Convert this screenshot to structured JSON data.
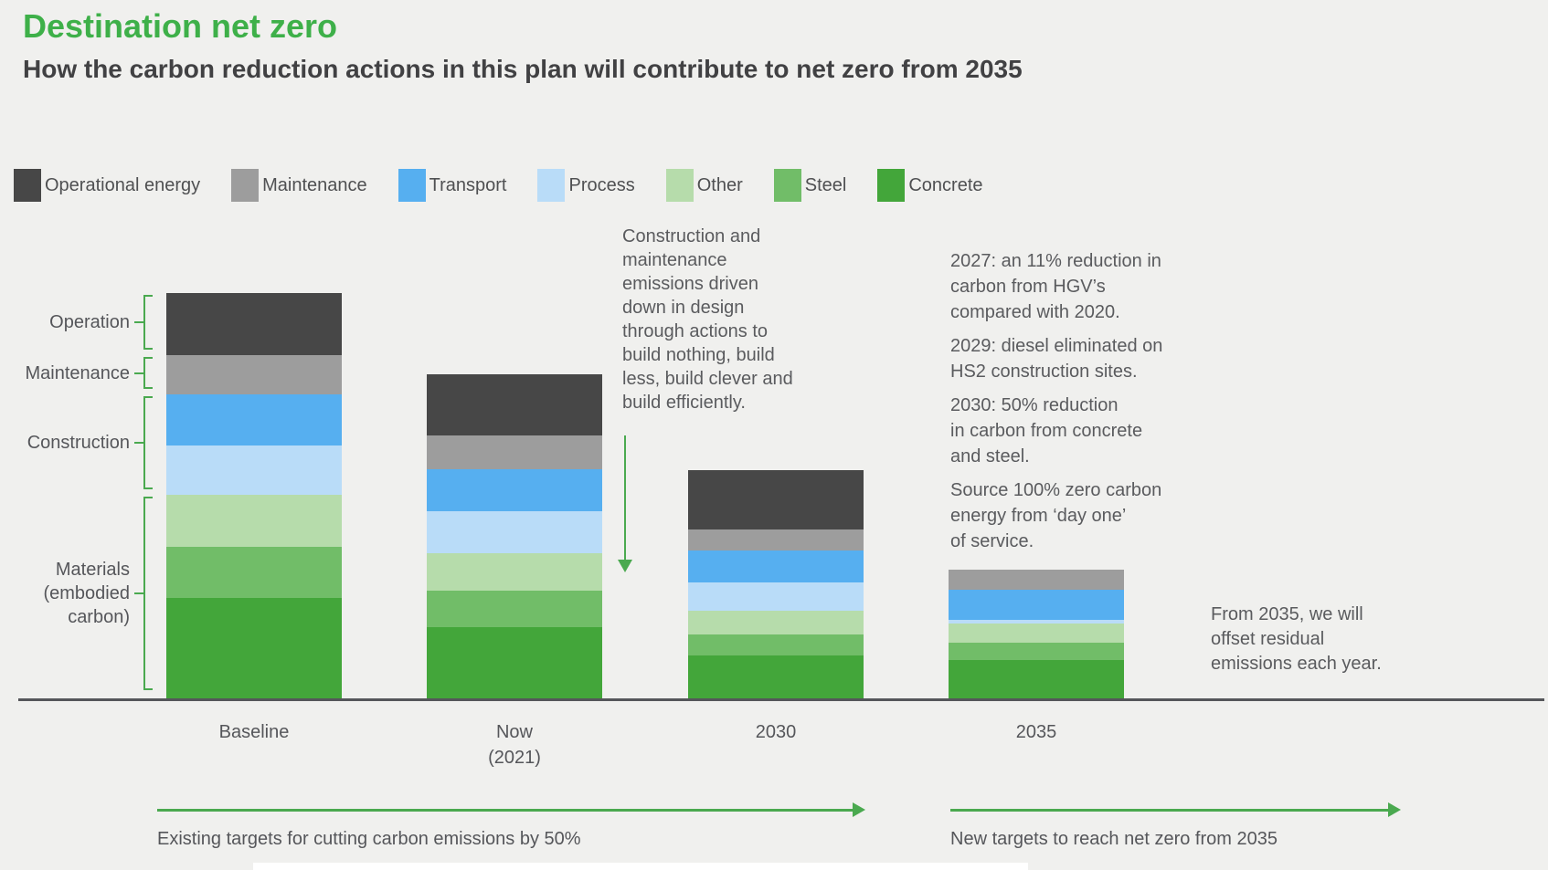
{
  "header": {
    "title": "Destination net zero",
    "subtitle": "How the carbon reduction actions in this plan will contribute to net zero from 2035"
  },
  "colors": {
    "background": "#f0f0ee",
    "title_green": "#3eb049",
    "accent_green": "#4aa94f",
    "axis": "#55565a",
    "text": "#5a5b5e"
  },
  "legend": {
    "items": [
      {
        "label": "Operational energy",
        "color": "#474747"
      },
      {
        "label": "Maintenance",
        "color": "#9d9d9d"
      },
      {
        "label": "Transport",
        "color": "#56aff0"
      },
      {
        "label": "Process",
        "color": "#b9dcf8"
      },
      {
        "label": "Other",
        "color": "#b6dcab"
      },
      {
        "label": "Steel",
        "color": "#71bd68"
      },
      {
        "label": "Concrete",
        "color": "#43a63a"
      }
    ]
  },
  "chart_data": {
    "type": "bar",
    "stacked": true,
    "title": "Destination net zero",
    "subtitle": "How the carbon reduction actions in this plan will contribute to net zero from 2035",
    "categories": [
      "Baseline",
      "Now\n(2021)",
      "2030",
      "2035"
    ],
    "series_note": "series listed top-to-bottom of stack; values are relative emission amounts (pixel-measured, Baseline total = 444, no numeric axis shown)",
    "series": [
      {
        "name": "Operational energy",
        "color": "#474747",
        "values": [
          68,
          67,
          65,
          0
        ]
      },
      {
        "name": "Maintenance",
        "color": "#9d9d9d",
        "values": [
          43,
          37,
          23,
          22
        ]
      },
      {
        "name": "Transport",
        "color": "#56aff0",
        "values": [
          56,
          46,
          35,
          33
        ]
      },
      {
        "name": "Process",
        "color": "#b9dcf8",
        "values": [
          54,
          46,
          31,
          4
        ]
      },
      {
        "name": "Other",
        "color": "#b6dcab",
        "values": [
          57,
          41,
          26,
          21
        ]
      },
      {
        "name": "Steel",
        "color": "#71bd68",
        "values": [
          56,
          40,
          23,
          19
        ]
      },
      {
        "name": "Concrete",
        "color": "#43a63a",
        "values": [
          110,
          78,
          47,
          42
        ]
      }
    ],
    "totals": [
      444,
      355,
      250,
      141
    ],
    "y_axis_visible": false,
    "grid": false,
    "legend_position": "top",
    "group_brackets": [
      {
        "label": "Operation",
        "series": [
          "Operational energy"
        ]
      },
      {
        "label": "Maintenance",
        "series": [
          "Maintenance"
        ]
      },
      {
        "label": "Construction",
        "series": [
          "Transport",
          "Process"
        ]
      },
      {
        "label": "Materials\n(embodied\ncarbon)",
        "series": [
          "Other",
          "Steel",
          "Concrete"
        ]
      }
    ]
  },
  "annotations": {
    "design_note": "Construction and\nmaintenance\nemissions driven\ndown in design\nthrough actions to\nbuild nothing, build\nless, build clever and\nbuild efficiently.",
    "milestones": [
      "2027: an 11% reduction in\ncarbon from HGV’s\ncompared with 2020.",
      "2029: diesel eliminated on\nHS2 construction sites.",
      "2030: 50% reduction\nin carbon from concrete\nand steel.",
      "Source 100% zero carbon\nenergy from ‘day one’\nof service."
    ],
    "offset_note": "From 2035, we will\noffset residual\nemissions each year.",
    "existing_targets": "Existing targets for cutting carbon emissions by 50%",
    "new_targets": "New targets to reach net zero from 2035"
  }
}
